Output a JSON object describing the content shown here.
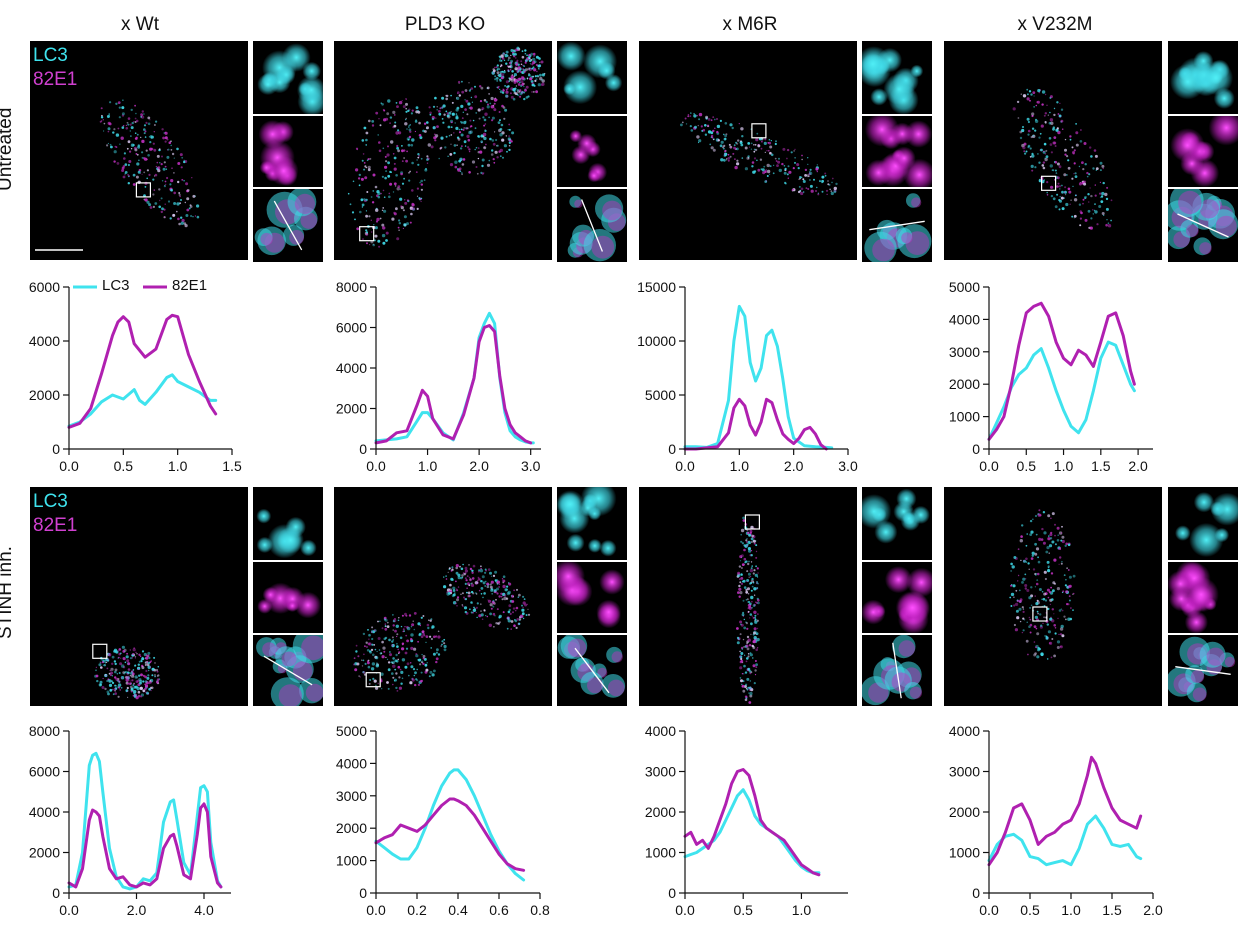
{
  "columns": [
    "x Wt",
    "PLD3 KO",
    "x M6R",
    "x V232M"
  ],
  "rows": [
    "Untreated",
    "STINH inh."
  ],
  "channels": [
    "LC3",
    "82E1"
  ],
  "colors": {
    "lc3": "#3fe3ee",
    "e1": "#b020b0"
  },
  "legend": [
    "LC3",
    "82E1"
  ],
  "chart_data": [
    {
      "type": "line",
      "panel": "untreated-wt",
      "xlim": [
        0,
        1.5
      ],
      "ylim": [
        0,
        6000
      ],
      "xticks": [
        0.0,
        0.5,
        1.0,
        1.5
      ],
      "xtick_labels": [
        "0.0",
        "0.5",
        "1.0",
        "1.5"
      ],
      "yticks": [
        0,
        2000,
        4000,
        6000
      ],
      "ytick_labels": [
        "0",
        "2000",
        "4000",
        "6000"
      ],
      "series": [
        {
          "name": "LC3",
          "x": [
            0,
            0.1,
            0.2,
            0.3,
            0.4,
            0.5,
            0.6,
            0.65,
            0.7,
            0.8,
            0.9,
            0.95,
            1.0,
            1.1,
            1.2,
            1.3,
            1.35
          ],
          "values": [
            850,
            1000,
            1300,
            1750,
            2000,
            1850,
            2200,
            1800,
            1650,
            2100,
            2650,
            2750,
            2500,
            2300,
            2100,
            1800,
            1800
          ]
        },
        {
          "name": "82E1",
          "x": [
            0,
            0.1,
            0.2,
            0.3,
            0.4,
            0.45,
            0.5,
            0.55,
            0.6,
            0.7,
            0.8,
            0.9,
            0.95,
            1.0,
            1.05,
            1.1,
            1.2,
            1.3,
            1.35
          ],
          "values": [
            800,
            950,
            1500,
            2800,
            4200,
            4700,
            4900,
            4700,
            3900,
            3400,
            3700,
            4800,
            4950,
            4900,
            4200,
            3500,
            2500,
            1600,
            1300
          ]
        }
      ]
    },
    {
      "type": "line",
      "panel": "untreated-pld3ko",
      "xlim": [
        0,
        3.2
      ],
      "ylim": [
        0,
        8000
      ],
      "xticks": [
        0.0,
        1.0,
        2.0,
        3.0
      ],
      "xtick_labels": [
        "0.0",
        "1.0",
        "2.0",
        "3.0"
      ],
      "yticks": [
        0,
        2000,
        4000,
        6000,
        8000
      ],
      "ytick_labels": [
        "0",
        "2000",
        "4000",
        "6000",
        "8000"
      ],
      "series": [
        {
          "name": "LC3",
          "x": [
            0,
            0.2,
            0.4,
            0.6,
            0.8,
            0.9,
            1.0,
            1.1,
            1.3,
            1.5,
            1.7,
            1.9,
            2.0,
            2.1,
            2.2,
            2.3,
            2.4,
            2.5,
            2.6,
            2.7,
            2.8,
            2.9,
            3.0,
            3.05
          ],
          "values": [
            400,
            450,
            500,
            600,
            1400,
            1800,
            1800,
            1500,
            800,
            450,
            1800,
            3500,
            5500,
            6200,
            6700,
            6200,
            3500,
            1800,
            900,
            600,
            450,
            350,
            300,
            300
          ]
        },
        {
          "name": "82E1",
          "x": [
            0,
            0.2,
            0.4,
            0.6,
            0.8,
            0.9,
            1.0,
            1.1,
            1.3,
            1.5,
            1.7,
            1.9,
            2.0,
            2.1,
            2.2,
            2.3,
            2.4,
            2.5,
            2.6,
            2.7,
            2.8,
            2.9,
            3.0
          ],
          "values": [
            300,
            400,
            800,
            900,
            2200,
            2900,
            2600,
            1500,
            700,
            500,
            1700,
            3500,
            5300,
            6000,
            6100,
            5800,
            3600,
            2000,
            1200,
            800,
            600,
            400,
            300
          ]
        }
      ]
    },
    {
      "type": "line",
      "panel": "untreated-m6r",
      "xlim": [
        0,
        3.0
      ],
      "ylim": [
        0,
        15000
      ],
      "xticks": [
        0.0,
        1.0,
        2.0,
        3.0
      ],
      "xtick_labels": [
        "0.0",
        "1.0",
        "2.0",
        "3.0"
      ],
      "yticks": [
        0,
        5000,
        10000,
        15000
      ],
      "ytick_labels": [
        "0",
        "5000",
        "10000",
        "15000"
      ],
      "series": [
        {
          "name": "LC3",
          "x": [
            0,
            0.2,
            0.4,
            0.6,
            0.8,
            0.9,
            1.0,
            1.1,
            1.2,
            1.3,
            1.4,
            1.5,
            1.6,
            1.7,
            1.8,
            1.9,
            2.0,
            2.2,
            2.4,
            2.6,
            2.7
          ],
          "values": [
            200,
            200,
            150,
            500,
            4500,
            10000,
            13200,
            12300,
            8000,
            6300,
            7500,
            10500,
            11000,
            9500,
            6500,
            3000,
            1000,
            300,
            200,
            150,
            100
          ]
        },
        {
          "name": "82E1",
          "x": [
            0,
            0.2,
            0.4,
            0.6,
            0.8,
            0.9,
            1.0,
            1.1,
            1.2,
            1.3,
            1.4,
            1.5,
            1.6,
            1.7,
            1.8,
            1.9,
            2.0,
            2.1,
            2.2,
            2.3,
            2.4,
            2.5,
            2.6
          ],
          "values": [
            0,
            0,
            100,
            200,
            1500,
            3800,
            4600,
            4000,
            2200,
            1300,
            2500,
            4600,
            4300,
            2700,
            1400,
            900,
            500,
            1000,
            1800,
            2000,
            1400,
            400,
            0
          ]
        }
      ]
    },
    {
      "type": "line",
      "panel": "untreated-v232m",
      "xlim": [
        0,
        2.2
      ],
      "ylim": [
        0,
        5000
      ],
      "xticks": [
        0.0,
        0.5,
        1.0,
        1.5,
        2.0
      ],
      "xtick_labels": [
        "0.0",
        "0.5",
        "1.0",
        "1.5",
        "2.0"
      ],
      "yticks": [
        0,
        1000,
        2000,
        3000,
        4000,
        5000
      ],
      "ytick_labels": [
        "0",
        "1000",
        "2000",
        "3000",
        "4000",
        "5000"
      ],
      "series": [
        {
          "name": "LC3",
          "x": [
            0,
            0.1,
            0.2,
            0.3,
            0.4,
            0.5,
            0.6,
            0.7,
            0.8,
            0.9,
            1.0,
            1.1,
            1.2,
            1.3,
            1.4,
            1.5,
            1.6,
            1.7,
            1.8,
            1.9,
            1.95
          ],
          "values": [
            300,
            800,
            1300,
            1900,
            2300,
            2500,
            2900,
            3100,
            2500,
            1800,
            1200,
            700,
            500,
            900,
            1800,
            2800,
            3300,
            3200,
            2600,
            2000,
            1800
          ]
        },
        {
          "name": "82E1",
          "x": [
            0,
            0.1,
            0.2,
            0.3,
            0.4,
            0.5,
            0.6,
            0.7,
            0.8,
            0.9,
            1.0,
            1.1,
            1.2,
            1.3,
            1.4,
            1.5,
            1.6,
            1.7,
            1.8,
            1.9,
            1.95
          ],
          "values": [
            300,
            600,
            1000,
            2000,
            3200,
            4200,
            4400,
            4500,
            4100,
            3300,
            2800,
            2600,
            3050,
            2900,
            2550,
            3300,
            4100,
            4200,
            3500,
            2400,
            2000
          ]
        }
      ]
    },
    {
      "type": "line",
      "panel": "stinh-wt",
      "xlim": [
        0,
        4.8
      ],
      "ylim": [
        0,
        8000
      ],
      "xticks": [
        0.0,
        2.0,
        4.0
      ],
      "xtick_labels": [
        "0.0",
        "2.0",
        "4.0"
      ],
      "yticks": [
        0,
        2000,
        4000,
        6000,
        8000
      ],
      "ytick_labels": [
        "0",
        "2000",
        "4000",
        "6000",
        "8000"
      ],
      "series": [
        {
          "name": "LC3",
          "x": [
            0,
            0.2,
            0.4,
            0.6,
            0.7,
            0.8,
            0.9,
            1.0,
            1.2,
            1.4,
            1.6,
            1.8,
            2.0,
            2.2,
            2.4,
            2.6,
            2.8,
            3.0,
            3.1,
            3.2,
            3.4,
            3.6,
            3.8,
            3.9,
            4.0,
            4.1,
            4.2,
            4.4,
            4.5
          ],
          "values": [
            300,
            400,
            2000,
            6300,
            6800,
            6900,
            6500,
            5000,
            2200,
            800,
            300,
            200,
            300,
            700,
            600,
            1000,
            3500,
            4500,
            4600,
            3600,
            1500,
            900,
            3800,
            5200,
            5300,
            5000,
            2500,
            600,
            300
          ]
        },
        {
          "name": "82E1",
          "x": [
            0,
            0.2,
            0.4,
            0.6,
            0.7,
            0.8,
            0.9,
            1.0,
            1.2,
            1.4,
            1.6,
            1.8,
            2.0,
            2.2,
            2.4,
            2.6,
            2.8,
            3.0,
            3.1,
            3.2,
            3.4,
            3.6,
            3.8,
            3.9,
            4.0,
            4.1,
            4.2,
            4.4,
            4.5
          ],
          "values": [
            500,
            300,
            1200,
            3600,
            4100,
            4000,
            3800,
            2800,
            1200,
            700,
            800,
            400,
            300,
            500,
            400,
            700,
            2200,
            2800,
            2900,
            2300,
            900,
            700,
            2900,
            4200,
            4400,
            4000,
            1800,
            500,
            300
          ]
        }
      ]
    },
    {
      "type": "line",
      "panel": "stinh-pld3ko",
      "xlim": [
        0,
        0.8
      ],
      "ylim": [
        0,
        5000
      ],
      "xticks": [
        0.0,
        0.2,
        0.4,
        0.6,
        0.8
      ],
      "xtick_labels": [
        "0.0",
        "0.2",
        "0.4",
        "0.6",
        "0.8"
      ],
      "yticks": [
        0,
        1000,
        2000,
        3000,
        4000,
        5000
      ],
      "ytick_labels": [
        "0",
        "1000",
        "2000",
        "3000",
        "4000",
        "5000"
      ],
      "series": [
        {
          "name": "LC3",
          "x": [
            0,
            0.04,
            0.08,
            0.12,
            0.16,
            0.2,
            0.24,
            0.28,
            0.32,
            0.36,
            0.38,
            0.4,
            0.44,
            0.48,
            0.52,
            0.56,
            0.6,
            0.64,
            0.68,
            0.72
          ],
          "values": [
            1600,
            1400,
            1200,
            1050,
            1050,
            1400,
            2000,
            2700,
            3300,
            3700,
            3800,
            3800,
            3500,
            3000,
            2400,
            1800,
            1300,
            900,
            600,
            400
          ]
        },
        {
          "name": "82E1",
          "x": [
            0,
            0.04,
            0.08,
            0.12,
            0.16,
            0.2,
            0.24,
            0.28,
            0.32,
            0.36,
            0.38,
            0.4,
            0.44,
            0.48,
            0.52,
            0.56,
            0.6,
            0.64,
            0.68,
            0.72
          ],
          "values": [
            1550,
            1700,
            1800,
            2100,
            2000,
            1900,
            2100,
            2400,
            2700,
            2900,
            2900,
            2850,
            2700,
            2400,
            2000,
            1600,
            1200,
            900,
            750,
            700
          ]
        }
      ]
    },
    {
      "type": "line",
      "panel": "stinh-m6r",
      "xlim": [
        0,
        1.4
      ],
      "ylim": [
        0,
        4000
      ],
      "xticks": [
        0.0,
        0.5,
        1.0
      ],
      "xtick_labels": [
        "0.0",
        "0.5",
        "1.0"
      ],
      "yticks": [
        0,
        1000,
        2000,
        3000,
        4000
      ],
      "ytick_labels": [
        "0",
        "1000",
        "2000",
        "3000",
        "4000"
      ],
      "series": [
        {
          "name": "LC3",
          "x": [
            0,
            0.05,
            0.1,
            0.15,
            0.2,
            0.25,
            0.3,
            0.35,
            0.4,
            0.45,
            0.5,
            0.55,
            0.6,
            0.65,
            0.7,
            0.75,
            0.8,
            0.85,
            0.9,
            0.95,
            1.0,
            1.05,
            1.1,
            1.15
          ],
          "values": [
            900,
            950,
            1000,
            1100,
            1200,
            1300,
            1500,
            1800,
            2100,
            2400,
            2550,
            2300,
            1900,
            1700,
            1600,
            1500,
            1400,
            1200,
            1000,
            800,
            650,
            550,
            500,
            500
          ]
        },
        {
          "name": "82E1",
          "x": [
            0,
            0.05,
            0.1,
            0.15,
            0.2,
            0.25,
            0.3,
            0.35,
            0.4,
            0.45,
            0.5,
            0.55,
            0.6,
            0.65,
            0.7,
            0.75,
            0.8,
            0.85,
            0.9,
            0.95,
            1.0,
            1.05,
            1.1,
            1.15
          ],
          "values": [
            1400,
            1500,
            1200,
            1300,
            1100,
            1400,
            1800,
            2200,
            2700,
            3000,
            3050,
            2900,
            2400,
            1800,
            1600,
            1500,
            1400,
            1300,
            1100,
            900,
            700,
            600,
            500,
            450
          ]
        }
      ]
    },
    {
      "type": "line",
      "panel": "stinh-v232m",
      "xlim": [
        0,
        2.0
      ],
      "ylim": [
        0,
        4000
      ],
      "xticks": [
        0.0,
        0.5,
        1.0,
        1.5,
        2.0
      ],
      "xtick_labels": [
        "0.0",
        "0.5",
        "1.0",
        "1.5",
        "2.0"
      ],
      "yticks": [
        0,
        1000,
        2000,
        3000,
        4000
      ],
      "ytick_labels": [
        "0",
        "1000",
        "2000",
        "3000",
        "4000"
      ],
      "series": [
        {
          "name": "LC3",
          "x": [
            0,
            0.1,
            0.2,
            0.3,
            0.4,
            0.5,
            0.6,
            0.7,
            0.8,
            0.9,
            1.0,
            1.1,
            1.2,
            1.3,
            1.4,
            1.5,
            1.6,
            1.7,
            1.8,
            1.85
          ],
          "values": [
            800,
            1200,
            1400,
            1450,
            1300,
            900,
            850,
            700,
            750,
            800,
            700,
            1100,
            1700,
            1900,
            1600,
            1200,
            1150,
            1200,
            900,
            850
          ]
        },
        {
          "name": "82E1",
          "x": [
            0,
            0.1,
            0.2,
            0.3,
            0.4,
            0.5,
            0.6,
            0.7,
            0.8,
            0.9,
            1.0,
            1.1,
            1.2,
            1.25,
            1.3,
            1.4,
            1.5,
            1.6,
            1.7,
            1.8,
            1.85
          ],
          "values": [
            700,
            1000,
            1500,
            2100,
            2200,
            1800,
            1200,
            1400,
            1500,
            1700,
            1800,
            2200,
            2900,
            3350,
            3200,
            2600,
            2100,
            1800,
            1700,
            1600,
            1900
          ]
        }
      ]
    }
  ]
}
